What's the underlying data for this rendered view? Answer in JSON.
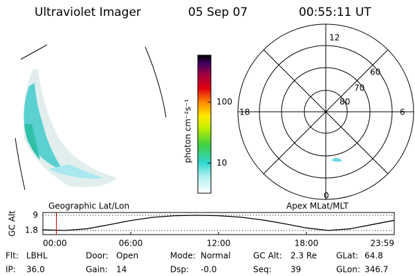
{
  "header": {
    "title": "Ultraviolet Imager",
    "date": "05 Sep 07",
    "time": "00:55:11 UT"
  },
  "colorbar": {
    "label": "photon cm⁻²s⁻¹",
    "log": true,
    "lim": [
      3.2,
      590
    ],
    "ticks": [
      10,
      100
    ]
  },
  "polar": {
    "hour_labels": [
      "12",
      "18",
      "6",
      "0"
    ],
    "lat_labels": [
      "60",
      "70",
      "80"
    ]
  },
  "captions": {
    "left": "Geographic Lat/Lon",
    "right": "Apex MLat/MLT"
  },
  "altitude_plot": {
    "ylabel": "GC Alt",
    "ylim": [
      -0.16,
      10.3
    ],
    "yticks": [
      1.8,
      9.0
    ],
    "xlim": [
      0,
      24
    ],
    "xticks": [
      {
        "value": 0,
        "label": "00:00"
      },
      {
        "value": 6,
        "label": "06:00"
      },
      {
        "value": 12,
        "label": "12:00"
      },
      {
        "value": 18,
        "label": "18:00"
      },
      {
        "value": 24,
        "label": "23:59"
      }
    ],
    "x": [
      0,
      1.5,
      3,
      4.5,
      6,
      7.5,
      9,
      10.5,
      12,
      13.5,
      15,
      16.5,
      18,
      19.5,
      21,
      22.5,
      24
    ],
    "values": [
      2.1,
      1.8,
      2.6,
      4.5,
      6.5,
      8.0,
      8.8,
      9.0,
      8.8,
      8.1,
      6.8,
      5.0,
      3.0,
      1.8,
      2.6,
      4.6,
      6.6
    ],
    "current_hour": 0.92,
    "marker_color": "#c00000"
  },
  "info": [
    [
      [
        "Flt:",
        "LBHL"
      ],
      [
        "Door:",
        "Open"
      ],
      [
        "Mode:",
        "Normal"
      ],
      [
        "GC Alt:",
        "2.3 Re"
      ],
      [
        "GLat:",
        "64.8"
      ]
    ],
    [
      [
        "IP:",
        "36.0"
      ],
      [
        "Gain:",
        "14"
      ],
      [
        "Dsp:",
        "-0.0"
      ],
      [
        "Seq:",
        "39"
      ],
      [
        "GLon:",
        "346.7"
      ]
    ]
  ]
}
